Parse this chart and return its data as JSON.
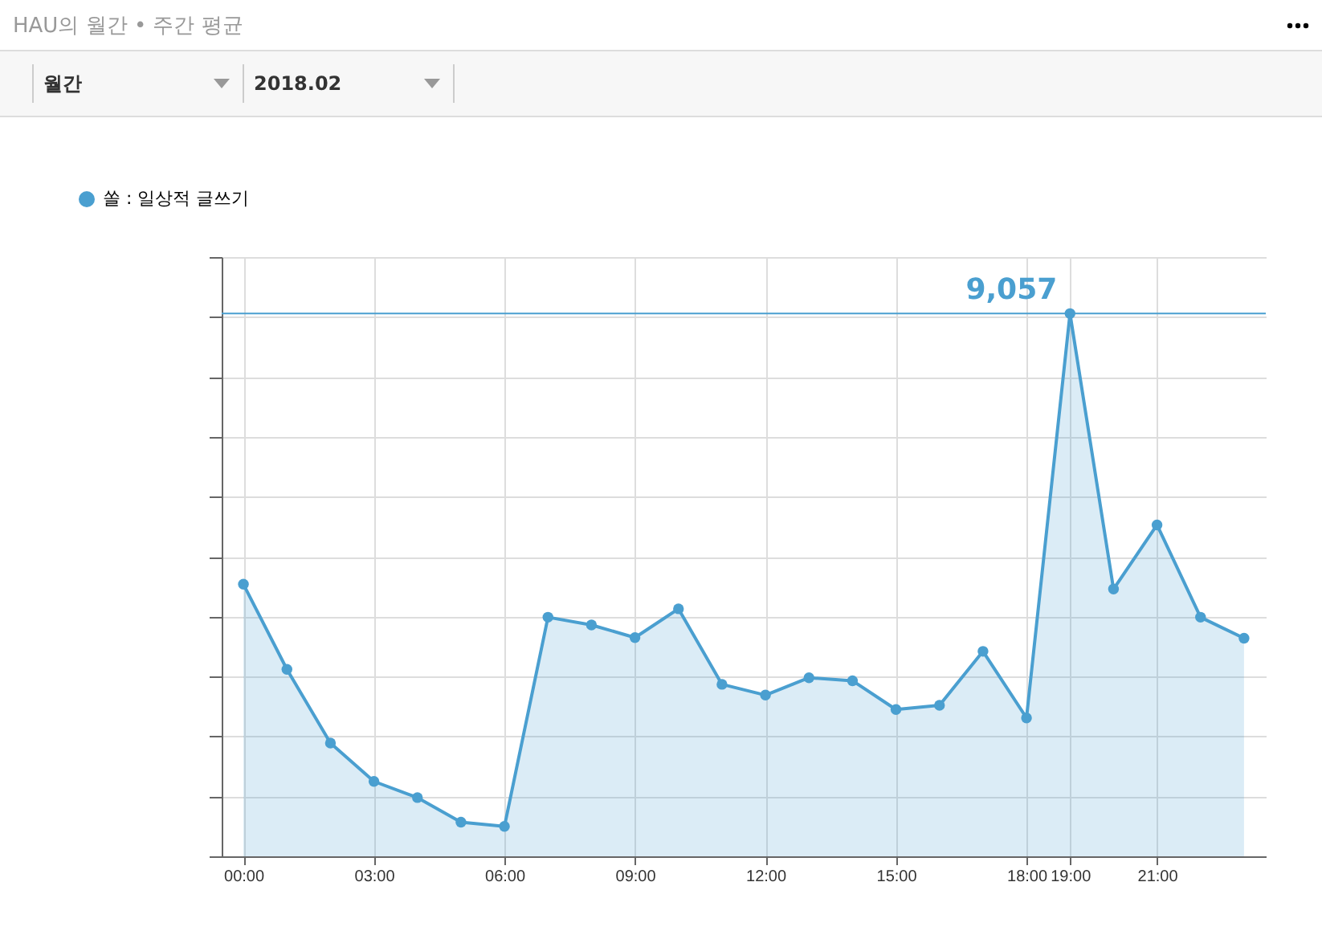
{
  "chart_data": {
    "type": "area",
    "title": "HAU의 월간 • 주간 평균",
    "annotations": [
      "월간",
      "2018.02"
    ],
    "categories": [
      "00:00",
      null,
      null,
      "03:00",
      null,
      null,
      "06:00",
      null,
      null,
      "09:00",
      null,
      null,
      "12:00",
      null,
      null,
      "15:00",
      null,
      null,
      "18:00",
      "19:00",
      null,
      "21:00",
      null,
      null
    ],
    "ylim": [
      0,
      10000
    ],
    "yticks": [
      {
        "value": 0,
        "label": null
      },
      {
        "value": 1000,
        "label": null
      },
      {
        "value": 2000,
        "label": null
      },
      {
        "value": 3000,
        "label": null
      },
      {
        "value": 4000,
        "label": null
      },
      {
        "value": 5000,
        "label": null
      },
      {
        "value": 6000,
        "label": null
      },
      {
        "value": 7000,
        "label": null
      },
      {
        "value": 8000,
        "label": null
      },
      {
        "value": 9000,
        "label": null
      },
      {
        "value": 10000,
        "label": null
      }
    ],
    "series": [
      {
        "name": "쏠 : 일상적 글쓰기",
        "color": "#4a9fd0",
        "values": [
          4540,
          3120,
          1890,
          1250,
          980,
          570,
          500,
          3990,
          3860,
          3650,
          4130,
          2870,
          2690,
          2980,
          2930,
          2450,
          2520,
          3420,
          2310,
          9057,
          4460,
          5530,
          3990,
          3640
        ],
        "value_labels": [
          null,
          null,
          null,
          null,
          null,
          null,
          null,
          null,
          null,
          null,
          null,
          null,
          null,
          null,
          null,
          null,
          null,
          null,
          null,
          "9,057",
          null,
          null,
          null,
          null
        ]
      }
    ],
    "ref_lines": [
      {
        "axis": "y",
        "value": 9057,
        "color": "#4a9fd0"
      }
    ],
    "grid": true,
    "legend": "top left",
    "marker": "circle"
  }
}
